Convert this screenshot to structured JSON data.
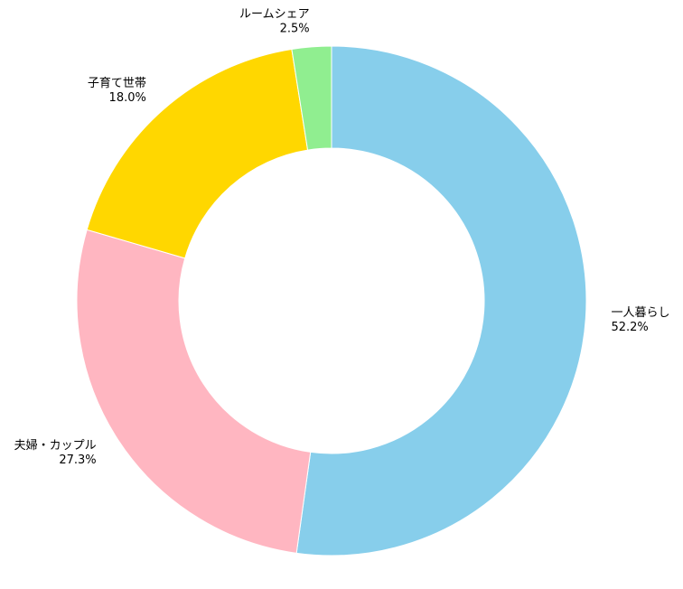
{
  "chart_data": {
    "type": "donut",
    "categories": [
      "一人暮らし",
      "夫婦・カップル",
      "子育て世帯",
      "ルームシェア"
    ],
    "values": [
      52.2,
      27.3,
      18.0,
      2.5
    ],
    "value_labels": [
      "52.2%",
      "27.3%",
      "18.0%",
      "2.5%"
    ],
    "colors": [
      "#87ceeb",
      "#ffb6c1",
      "#ffd700",
      "#90ee90"
    ]
  }
}
